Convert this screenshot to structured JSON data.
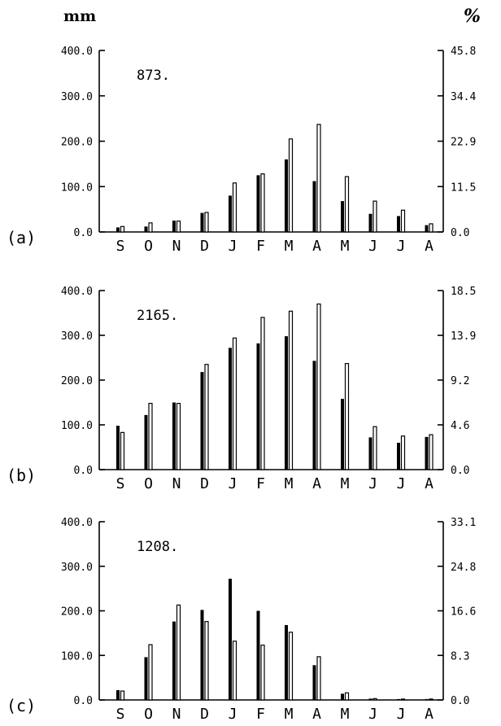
{
  "units": {
    "left": "mm",
    "right": "%"
  },
  "chart_data": [
    {
      "type": "bar",
      "panel_label": "(a)",
      "total_label": "873.",
      "categories": [
        "S",
        "O",
        "N",
        "D",
        "J",
        "F",
        "M",
        "A",
        "M",
        "J",
        "J",
        "A"
      ],
      "y_ticks": [
        "0.0",
        "100.0",
        "200.0",
        "300.0",
        "400.0"
      ],
      "y2_ticks": [
        "0.0",
        "11.5",
        "22.9",
        "34.4",
        "45.8"
      ],
      "ylim": [
        0,
        400
      ],
      "y2lim": [
        0,
        45.8
      ],
      "series": [
        {
          "values": [
            10,
            12,
            25,
            42,
            80,
            125,
            160,
            112,
            68,
            40,
            35,
            15
          ]
        },
        {
          "values": [
            12,
            20,
            24,
            43,
            108,
            128,
            205,
            237,
            122,
            68,
            48,
            18
          ]
        }
      ]
    },
    {
      "type": "bar",
      "panel_label": "(b)",
      "total_label": "2165.",
      "categories": [
        "S",
        "O",
        "N",
        "D",
        "J",
        "F",
        "M",
        "A",
        "M",
        "J",
        "J",
        "A"
      ],
      "y_ticks": [
        "0.0",
        "100.0",
        "200.0",
        "300.0",
        "400.0"
      ],
      "y2_ticks": [
        "0.0",
        "4.6",
        "9.2",
        "13.9",
        "18.5"
      ],
      "ylim": [
        0,
        400
      ],
      "y2lim": [
        0,
        18.5
      ],
      "series": [
        {
          "values": [
            98,
            122,
            150,
            218,
            272,
            282,
            298,
            243,
            158,
            72,
            60,
            73
          ]
        },
        {
          "values": [
            83,
            148,
            148,
            235,
            294,
            340,
            354,
            370,
            237,
            96,
            75,
            78
          ]
        }
      ]
    },
    {
      "type": "bar",
      "panel_label": "(c)",
      "total_label": "1208.",
      "categories": [
        "S",
        "O",
        "N",
        "D",
        "J",
        "F",
        "M",
        "A",
        "M",
        "J",
        "J",
        "A"
      ],
      "y_ticks": [
        "0.0",
        "100.0",
        "200.0",
        "300.0",
        "400.0"
      ],
      "y2_ticks": [
        "0.0",
        "8.3",
        "16.6",
        "24.8",
        "33.1"
      ],
      "ylim": [
        0,
        400
      ],
      "y2lim": [
        0,
        33.1
      ],
      "series": [
        {
          "values": [
            22,
            96,
            176,
            202,
            272,
            200,
            168,
            78,
            14,
            3,
            2,
            2
          ]
        },
        {
          "values": [
            20,
            124,
            213,
            176,
            132,
            123,
            152,
            97,
            16,
            3,
            2,
            2
          ]
        }
      ]
    }
  ]
}
